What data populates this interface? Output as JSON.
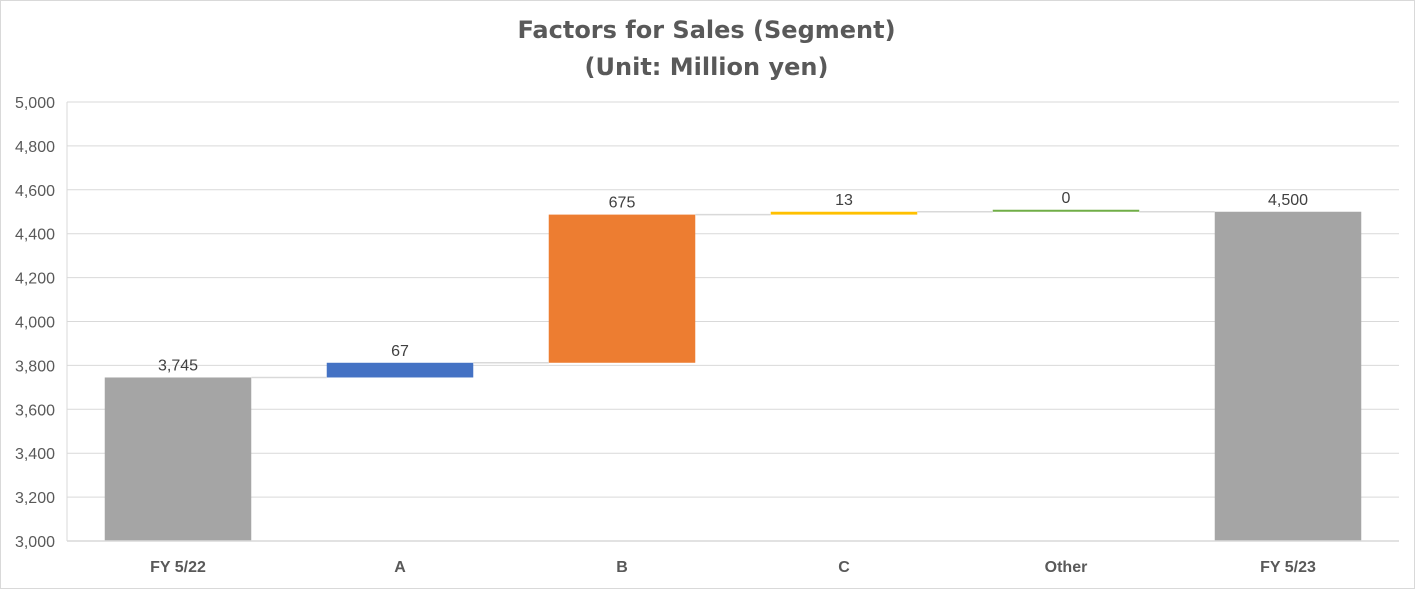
{
  "chart_data": {
    "type": "bar",
    "subtype": "waterfall",
    "title": "Factors for Sales (Segment)",
    "subtitle": "(Unit: Million yen)",
    "categories": [
      "FY 5/22",
      "A",
      "B",
      "C",
      "Other",
      "FY 5/23"
    ],
    "values": [
      3745,
      67,
      675,
      13,
      0,
      4500
    ],
    "data_labels": [
      "3,745",
      "67",
      "675",
      "13",
      "0",
      "4,500"
    ],
    "kinds": [
      "total",
      "delta",
      "delta",
      "delta",
      "delta",
      "total"
    ],
    "colors": [
      "#a5a5a5",
      "#4472c4",
      "#ed7d31",
      "#ffc000",
      "#70ad47",
      "#a5a5a5"
    ],
    "ylim": [
      3000,
      5000
    ],
    "yticks": [
      3000,
      3200,
      3400,
      3600,
      3800,
      4000,
      4200,
      4400,
      4600,
      4800,
      5000
    ],
    "ytick_labels": [
      "3,000",
      "3,200",
      "3,400",
      "3,600",
      "3,800",
      "4,000",
      "4,200",
      "4,400",
      "4,600",
      "4,800",
      "5,000"
    ],
    "xlabel": "",
    "ylabel": "",
    "grid": true,
    "legend": "none"
  }
}
